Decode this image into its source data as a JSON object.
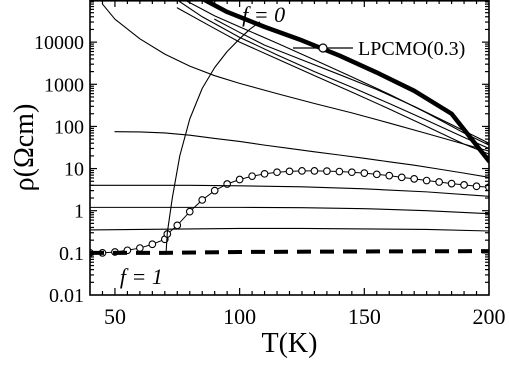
{
  "chart_data": {
    "type": "line",
    "title": "",
    "xlabel": "T(K)",
    "ylabel": "ρ(Ωcm)",
    "xlim": [
      40,
      200
    ],
    "ylim": [
      0.01,
      100000
    ],
    "yscale": "log",
    "grid": false,
    "x_ticks": [
      50,
      100,
      150,
      200
    ],
    "y_ticks": [
      {
        "value": 0.01,
        "label": "0.01"
      },
      {
        "value": 0.1,
        "label": "0.1"
      },
      {
        "value": 1,
        "label": "1"
      },
      {
        "value": 10,
        "label": "10"
      },
      {
        "value": 100,
        "label": "100"
      },
      {
        "value": 1000,
        "label": "1000"
      },
      {
        "value": 10000,
        "label": "10000"
      }
    ],
    "legend": {
      "placement": "top-right",
      "entries": [
        "LPCMO(0.3)"
      ]
    },
    "annotations": [
      {
        "text": "f = 0",
        "x": 101,
        "y": 30000
      },
      {
        "text": "f = 1",
        "x": 52,
        "y": 0.018
      }
    ],
    "series": [
      {
        "name": "LPCMO(0.3)",
        "style": "open-circles",
        "color": "#000000",
        "x": [
          40,
          45,
          50,
          55,
          60,
          65,
          70,
          71,
          75,
          80,
          85,
          90,
          95,
          100,
          105,
          110,
          115,
          120,
          125,
          130,
          135,
          140,
          145,
          150,
          155,
          160,
          165,
          170,
          175,
          180,
          185,
          190,
          195,
          200
        ],
        "y": [
          0.1,
          0.1,
          0.105,
          0.115,
          0.13,
          0.16,
          0.21,
          0.28,
          0.45,
          0.95,
          1.8,
          3.0,
          4.3,
          5.5,
          6.6,
          7.5,
          8.2,
          8.6,
          8.8,
          8.8,
          8.7,
          8.5,
          8.2,
          7.8,
          7.3,
          6.8,
          6.2,
          5.7,
          5.2,
          4.8,
          4.4,
          4.1,
          3.8,
          3.6
        ]
      },
      {
        "style": "thick-dashed",
        "color": "#000000",
        "x": [
          40,
          70,
          100,
          150,
          200
        ],
        "y": [
          0.1,
          0.1,
          0.105,
          0.108,
          0.11
        ]
      },
      {
        "style": "thick-solid",
        "color": "#000000",
        "x": [
          86,
          95,
          110,
          125,
          140,
          155,
          170,
          185,
          200
        ],
        "y": [
          100000,
          52000,
          23000,
          11000,
          4800,
          1900,
          700,
          200,
          15
        ]
      },
      {
        "style": "thin",
        "color": "#000000",
        "x": [
          40,
          60,
          80,
          100,
          125,
          150,
          175,
          200
        ],
        "y": [
          0.35,
          0.36,
          0.37,
          0.38,
          0.38,
          0.37,
          0.36,
          0.33
        ]
      },
      {
        "style": "thin",
        "color": "#000000",
        "x": [
          40,
          60,
          80,
          100,
          125,
          150,
          175,
          200
        ],
        "y": [
          1.2,
          1.2,
          1.2,
          1.2,
          1.18,
          1.12,
          1.0,
          0.85
        ]
      },
      {
        "style": "thin",
        "color": "#000000",
        "x": [
          40,
          60,
          80,
          100,
          125,
          150,
          175,
          200
        ],
        "y": [
          4.0,
          4.0,
          4.0,
          3.9,
          3.7,
          3.3,
          2.8,
          2.2
        ]
      },
      {
        "style": "thin",
        "color": "#000000",
        "x": [
          50,
          60,
          70,
          80,
          90,
          100,
          110,
          120,
          130,
          140,
          150,
          160,
          170,
          180,
          190,
          200
        ],
        "y": [
          75,
          74,
          70,
          62,
          52,
          44,
          36,
          30,
          25,
          21,
          17.5,
          14.5,
          12,
          9.7,
          7.8,
          6.2
        ]
      },
      {
        "style": "thin",
        "color": "#000000",
        "x": [
          45,
          50,
          60,
          70,
          80,
          90,
          100,
          115,
          130,
          145,
          160,
          175,
          190,
          200
        ],
        "y": [
          80000,
          35000,
          12000,
          5200,
          2700,
          1600,
          1050,
          600,
          350,
          210,
          120,
          68,
          38,
          26
        ]
      },
      {
        "style": "thin",
        "color": "#000000",
        "x": [
          90,
          100,
          110,
          125,
          140,
          155,
          170,
          185,
          200
        ],
        "y": [
          35000,
          17000,
          8500,
          3800,
          1700,
          750,
          300,
          110,
          40
        ]
      },
      {
        "style": "thin",
        "color": "#000000",
        "x": [
          75,
          85,
          100,
          115,
          130,
          145,
          160,
          175,
          190,
          200
        ],
        "y": [
          100000,
          40000,
          13000,
          5000,
          2000,
          850,
          350,
          140,
          55,
          30
        ]
      },
      {
        "style": "thin",
        "color": "#000000",
        "x": [
          75,
          90,
          100,
          115,
          130,
          145,
          160,
          175,
          190,
          200
        ],
        "y": [
          65000,
          21000,
          10000,
          4000,
          1600,
          650,
          260,
          100,
          38,
          22
        ]
      },
      {
        "style": "thin",
        "color": "#000000",
        "x": [
          78,
          90,
          100,
          115,
          130,
          145,
          160,
          175,
          190,
          200
        ],
        "y": [
          100000,
          42000,
          23000,
          9500,
          3800,
          1500,
          580,
          210,
          70,
          36
        ]
      },
      {
        "style": "thin-connector",
        "color": "#000000",
        "x": [
          70.5,
          71,
          73,
          76,
          80,
          85,
          90,
          95,
          100,
          104,
          108
        ],
        "y": [
          0.1,
          0.3,
          2,
          20,
          150,
          800,
          2500,
          6000,
          12000,
          20000,
          30000
        ]
      }
    ]
  }
}
